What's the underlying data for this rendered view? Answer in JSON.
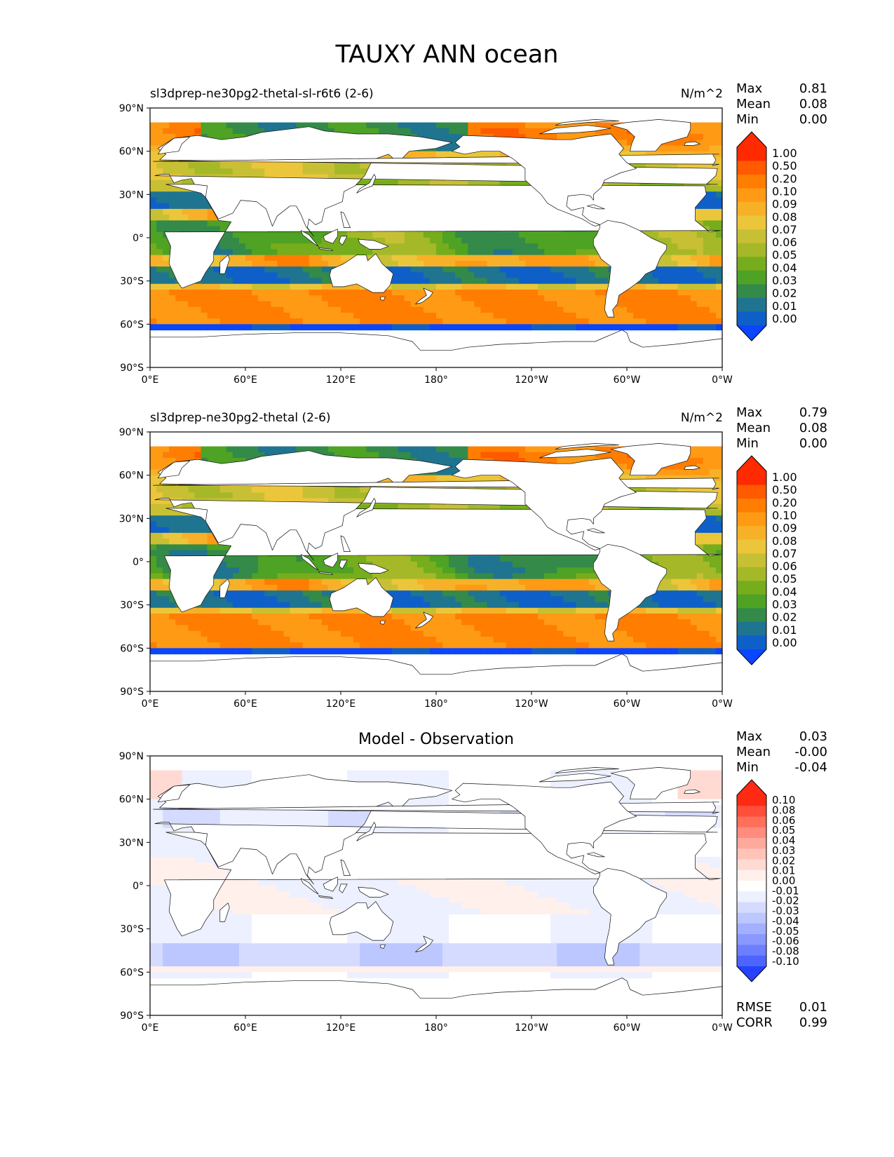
{
  "title": "TAUXY ANN ocean",
  "x_ticks": [
    "0°E",
    "60°E",
    "120°E",
    "180°",
    "120°W",
    "60°W",
    "0°W"
  ],
  "y_ticks": [
    "90°N",
    "60°N",
    "30°N",
    "0°",
    "30°S",
    "60°S",
    "90°S"
  ],
  "panels": [
    {
      "title_left": "sl3dprep-ne30pg2-thetal-sl-r6t6 (2-6)",
      "units": "N/m^2",
      "stats": [
        {
          "label": "Max",
          "value": "0.81"
        },
        {
          "label": "Mean",
          "value": "0.08"
        },
        {
          "label": "Min",
          "value": "0.00"
        }
      ],
      "colorbar_labels": [
        "1.00",
        "0.50",
        "0.20",
        "0.10",
        "0.09",
        "0.08",
        "0.07",
        "0.06",
        "0.05",
        "0.04",
        "0.03",
        "0.02",
        "0.01",
        "0.00"
      ]
    },
    {
      "title_left": "sl3dprep-ne30pg2-thetal (2-6)",
      "units": "N/m^2",
      "stats": [
        {
          "label": "Max",
          "value": "0.79"
        },
        {
          "label": "Mean",
          "value": "0.08"
        },
        {
          "label": "Min",
          "value": "0.00"
        }
      ],
      "colorbar_labels": [
        "1.00",
        "0.50",
        "0.20",
        "0.10",
        "0.09",
        "0.08",
        "0.07",
        "0.06",
        "0.05",
        "0.04",
        "0.03",
        "0.02",
        "0.01",
        "0.00"
      ]
    },
    {
      "title_center": "Model - Observation",
      "stats": [
        {
          "label": "Max",
          "value": "0.03"
        },
        {
          "label": "Mean",
          "value": "-0.00"
        },
        {
          "label": "Min",
          "value": "-0.04"
        }
      ],
      "colorbar_labels": [
        "0.10",
        "0.08",
        "0.06",
        "0.05",
        "0.04",
        "0.03",
        "0.02",
        "0.01",
        "0.00",
        "-0.01",
        "-0.02",
        "-0.03",
        "-0.04",
        "-0.05",
        "-0.06",
        "-0.08",
        "-0.10"
      ],
      "bottom_stats": [
        {
          "label": "RMSE",
          "value": "0.01"
        },
        {
          "label": "CORR",
          "value": "0.99"
        }
      ]
    }
  ],
  "colors": {
    "mean_scale": [
      "#ff2a00",
      "#ff5a00",
      "#ff7d00",
      "#ff9a14",
      "#f7b128",
      "#ecc63a",
      "#c8c034",
      "#a5b928",
      "#76ad1c",
      "#4ea224",
      "#348a48",
      "#1f7490",
      "#0e60c8",
      "#0a45ff"
    ],
    "diff_scale": [
      "#ff2a14",
      "#ff4e3a",
      "#ff6f5a",
      "#ff8c7c",
      "#ffa99c",
      "#ffc3b8",
      "#ffdad3",
      "#fff0ec",
      "#ffffff",
      "#ecf0ff",
      "#d5dbff",
      "#bcc6ff",
      "#a2b0ff",
      "#8898ff",
      "#6c7fff",
      "#4e64ff",
      "#2443ff"
    ]
  }
}
